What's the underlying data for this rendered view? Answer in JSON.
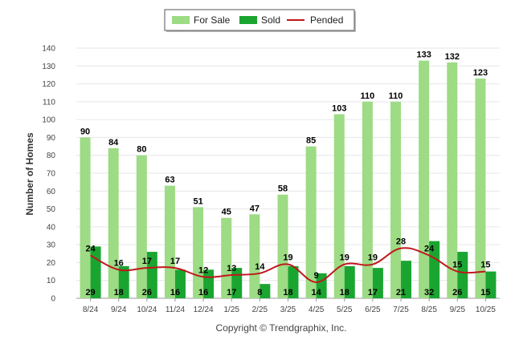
{
  "chart_data": {
    "type": "bar",
    "categories": [
      "8/24",
      "9/24",
      "10/24",
      "11/24",
      "12/24",
      "1/25",
      "2/25",
      "3/25",
      "4/25",
      "5/25",
      "6/25",
      "7/25",
      "8/25",
      "9/25",
      "10/25"
    ],
    "series": [
      {
        "name": "For Sale",
        "type": "bar",
        "color": "#9ddb85",
        "values": [
          90,
          84,
          80,
          63,
          51,
          45,
          47,
          58,
          85,
          103,
          110,
          110,
          133,
          132,
          123
        ]
      },
      {
        "name": "Sold",
        "type": "bar",
        "color": "#1aa531",
        "values": [
          29,
          18,
          26,
          16,
          16,
          17,
          8,
          18,
          14,
          18,
          17,
          21,
          32,
          26,
          15
        ]
      },
      {
        "name": "Pended",
        "type": "line",
        "color": "#c0161b",
        "values": [
          24,
          16,
          17,
          17,
          12,
          13,
          14,
          19,
          9,
          19,
          19,
          28,
          24,
          15,
          15
        ]
      }
    ],
    "ylabel": "Number of Homes",
    "ylim": [
      0,
      140
    ],
    "yticks": [
      0,
      10,
      20,
      30,
      40,
      50,
      60,
      70,
      80,
      90,
      100,
      110,
      120,
      130,
      140
    ],
    "grid": true,
    "legend_position": "top-center"
  },
  "footer": {
    "copyright": "Copyright © Trendgraphix, Inc."
  }
}
